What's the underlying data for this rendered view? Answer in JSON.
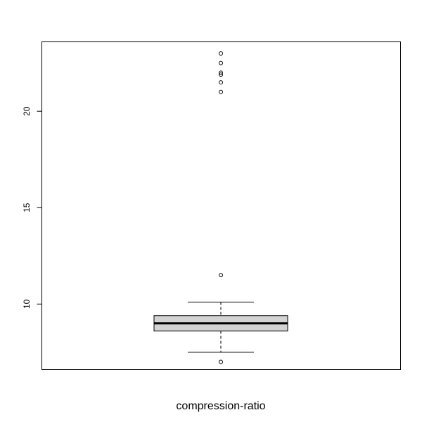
{
  "chart_data": {
    "type": "boxplot",
    "xlabel": "compression-ratio",
    "ylabel": "",
    "ylim": [
      6.6,
      23.6
    ],
    "yticks": [
      10,
      15,
      20
    ],
    "grid": false,
    "box": {
      "whisker_low": 7.5,
      "q1": 8.6,
      "median": 9.0,
      "q3": 9.4,
      "whisker_high": 10.1
    },
    "outliers": [
      7.0,
      11.5,
      21.0,
      21.5,
      21.9,
      22.0,
      22.5,
      23.0
    ],
    "colors": {
      "box_fill": "#d3d3d3",
      "line": "#000000",
      "background": "#ffffff"
    }
  }
}
